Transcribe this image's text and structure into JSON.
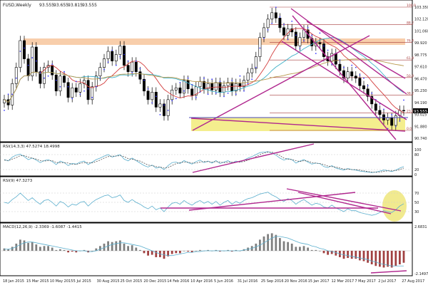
{
  "colors": {
    "up": "#ffffff",
    "down": "#000000",
    "candle_border": "#000000",
    "ma_fast": "#d23c3c",
    "ma_mid": "#3fb0c8",
    "ma_slow": "#b89a4e",
    "parabolic": "#3a3aff",
    "trendline": "#b0278e",
    "highlight_top": "#f7c9a2",
    "highlight_bottom": "#f4ee8e",
    "osc_main": "#5aaecd",
    "osc_signal": "#555555",
    "macd_up": "#7f7f7f",
    "macd_down": "#a04040",
    "fib": "#a63b3b",
    "ellipse": "#ece36a"
  },
  "chart_data": [
    {
      "type": "candlestick",
      "title": "FUSD,Weekly",
      "ohlc": [
        "93.555",
        "93.655",
        "93.815",
        "93.555"
      ],
      "series": [
        {
          "name": "Close",
          "values": [
            94.6,
            94.1,
            96.1,
            97.6,
            100.1,
            98.4,
            96.8,
            99.5,
            97.2,
            96.1,
            97.6,
            97.8,
            96.9,
            95.4,
            96.8,
            96.2,
            94.8,
            95.7,
            95.3,
            96.1,
            96.4,
            94.6,
            95.8,
            96.8,
            97.6,
            98.4,
            99.1,
            98.2,
            98.8,
            99.6,
            97.8,
            97.2,
            98.1,
            97.2,
            96.5,
            95.4,
            94.6,
            95.3,
            93.9,
            94.2,
            93.1,
            94.6,
            95.5,
            95.7,
            95.2,
            96.4,
            95.6,
            95.0,
            95.8,
            96.3,
            95.6,
            96.1,
            95.5,
            96.2,
            95.3,
            95.9,
            96.2,
            95.4,
            96.1,
            95.8,
            96.4,
            97.1,
            97.5,
            98.6,
            100.4,
            101.3,
            102.1,
            102.7,
            102.2,
            101.3,
            100.6,
            101.2,
            100.9,
            99.6,
            100.4,
            101.1,
            100.3,
            99.6,
            99.9,
            99.8,
            98.6,
            98.2,
            98.9,
            97.9,
            97.3,
            96.6,
            97.2,
            96.8,
            96.6,
            95.9,
            95.6,
            94.9,
            94.2,
            93.6,
            93.2,
            92.7,
            92.9,
            92.2,
            93.1,
            93.6,
            93.555
          ]
        },
        {
          "name": "Parabolic SAR"
        },
        {
          "name": "Moving averages"
        }
      ],
      "y_ticks": [
        "103.350",
        "102.120",
        "101.060",
        "99.920",
        "98.775",
        "97.610",
        "96.470",
        "95.230",
        "94.190",
        "93.025",
        "91.880",
        "90.740"
      ],
      "fib_labels": [
        "100.0",
        "88.2",
        "76.4",
        "61.8",
        "50.0",
        "38.2",
        "23.6",
        "0.0"
      ],
      "last_price": "93.555",
      "x_labels": [
        "18 Jan 2015",
        "15 Mar 2015",
        "10 May 2015",
        "5 Jul 2015",
        "30 Aug 2015",
        "25 Oct 2015",
        "20 Dec 2015",
        "14 Feb 2016",
        "10 Apr 2016",
        "5 Jun 2016",
        "31 Jul 2016",
        "25 Sep 2016",
        "20 Nov 2016",
        "15 Jan 2017",
        "12 Mar 2017",
        "7 May 2017",
        "2 Jul 2017",
        "27 Aug 2017"
      ],
      "ylim": [
        90.74,
        103.35
      ]
    },
    {
      "type": "line",
      "title": "RSI(14,3,3) 47.5274 18.4998",
      "ticks": [
        "100",
        "80",
        "20",
        "0"
      ],
      "series": [
        {
          "values": [
            60,
            55,
            70,
            78,
            82,
            72,
            60,
            66,
            58,
            48,
            56,
            60,
            52,
            40,
            54,
            48,
            36,
            45,
            42,
            50,
            54,
            40,
            50,
            60,
            66,
            74,
            80,
            70,
            75,
            80,
            62,
            55,
            66,
            56,
            46,
            36,
            30,
            38,
            26,
            30,
            20,
            36,
            48,
            50,
            44,
            56,
            48,
            42,
            52,
            58,
            48,
            54,
            46,
            56,
            44,
            50,
            56,
            46,
            54,
            50,
            58,
            66,
            72,
            80,
            88,
            90,
            92,
            86,
            78,
            66,
            58,
            64,
            60,
            46,
            54,
            60,
            50,
            42,
            46,
            44,
            32,
            28,
            36,
            26,
            22,
            18,
            24,
            20,
            18,
            14,
            12,
            10,
            8,
            10,
            14,
            18,
            16,
            12,
            18,
            26,
            32
          ]
        },
        {
          "values": [
            58,
            56,
            62,
            68,
            76,
            76,
            70,
            66,
            62,
            56,
            54,
            56,
            56,
            48,
            48,
            48,
            46,
            42,
            41,
            45,
            48,
            48,
            47,
            52,
            58,
            66,
            72,
            74,
            74,
            76,
            72,
            64,
            62,
            58,
            54,
            46,
            38,
            36,
            32,
            30,
            26,
            28,
            36,
            44,
            48,
            50,
            50,
            46,
            46,
            50,
            52,
            52,
            50,
            52,
            50,
            48,
            50,
            50,
            50,
            50,
            52,
            58,
            64,
            72,
            80,
            86,
            90,
            90,
            84,
            76,
            66,
            62,
            60,
            56,
            52,
            56,
            54,
            48,
            46,
            44,
            40,
            34,
            32,
            30,
            26,
            22,
            22,
            20,
            20,
            18,
            15,
            12,
            10,
            9,
            10,
            13,
            15,
            15,
            16,
            20,
            26
          ]
        }
      ]
    },
    {
      "type": "line",
      "title": "RSI(9) 47.3273",
      "ticks": [
        "70",
        "50",
        "30"
      ],
      "series": [
        {
          "values": [
            50,
            48,
            56,
            62,
            70,
            62,
            54,
            60,
            52,
            46,
            54,
            56,
            50,
            42,
            52,
            48,
            40,
            46,
            44,
            50,
            52,
            42,
            50,
            56,
            60,
            64,
            66,
            60,
            62,
            66,
            54,
            50,
            56,
            50,
            46,
            40,
            36,
            42,
            34,
            38,
            30,
            40,
            48,
            50,
            46,
            54,
            48,
            44,
            50,
            54,
            48,
            52,
            46,
            52,
            44,
            50,
            54,
            46,
            52,
            48,
            54,
            58,
            60,
            64,
            68,
            70,
            72,
            66,
            62,
            56,
            52,
            58,
            54,
            46,
            52,
            56,
            50,
            44,
            48,
            46,
            40,
            38,
            44,
            38,
            34,
            30,
            36,
            32,
            32,
            28,
            26,
            24,
            22,
            24,
            28,
            32,
            30,
            28,
            34,
            42,
            47
          ]
        }
      ]
    },
    {
      "type": "bar",
      "title": "MACD(12,26,9) -2.3369 -1.6087 -1.4415",
      "ticks": [
        "2.6831",
        "-2.1497"
      ],
      "series": [
        {
          "name": "histogram",
          "values": [
            0.3,
            0.2,
            0.5,
            0.9,
            1.4,
            1.3,
            1.0,
            1.1,
            0.8,
            0.5,
            0.6,
            0.6,
            0.4,
            0.1,
            0.2,
            0.1,
            -0.2,
            -0.1,
            -0.2,
            0.0,
            0.1,
            -0.2,
            0.0,
            0.3,
            0.6,
            0.9,
            1.2,
            1.1,
            1.2,
            1.3,
            0.9,
            0.6,
            0.7,
            0.4,
            0.1,
            -0.3,
            -0.6,
            -0.5,
            -0.8,
            -0.8,
            -1.0,
            -0.7,
            -0.4,
            -0.3,
            -0.3,
            0.0,
            -0.1,
            -0.2,
            0.0,
            0.1,
            0.0,
            0.1,
            0.0,
            0.1,
            -0.1,
            0.0,
            0.1,
            -0.1,
            0.1,
            0.0,
            0.2,
            0.4,
            0.6,
            0.9,
            1.4,
            1.8,
            2.1,
            2.2,
            2.0,
            1.6,
            1.2,
            1.1,
            0.9,
            0.5,
            0.5,
            0.6,
            0.4,
            0.1,
            0.1,
            0.0,
            -0.3,
            -0.5,
            -0.4,
            -0.6,
            -0.8,
            -1.0,
            -0.9,
            -1.0,
            -1.0,
            -1.2,
            -1.3,
            -1.5,
            -1.7,
            -1.9,
            -2.0,
            -2.1,
            -2.0,
            -2.1,
            -1.9,
            -1.7,
            -1.5
          ]
        },
        {
          "name": "signal",
          "values": [
            0.2,
            0.2,
            0.3,
            0.5,
            0.8,
            1.0,
            1.1,
            1.1,
            1.0,
            0.9,
            0.8,
            0.7,
            0.6,
            0.5,
            0.4,
            0.3,
            0.2,
            0.1,
            0.0,
            0.0,
            0.0,
            -0.1,
            -0.1,
            0.0,
            0.2,
            0.4,
            0.6,
            0.8,
            0.9,
            1.0,
            1.0,
            0.9,
            0.8,
            0.7,
            0.6,
            0.4,
            0.2,
            0.0,
            -0.2,
            -0.4,
            -0.5,
            -0.6,
            -0.6,
            -0.5,
            -0.4,
            -0.3,
            -0.2,
            -0.2,
            -0.1,
            -0.1,
            0.0,
            0.0,
            0.0,
            0.0,
            0.0,
            0.0,
            0.0,
            0.0,
            0.0,
            0.0,
            0.1,
            0.2,
            0.3,
            0.5,
            0.7,
            1.0,
            1.3,
            1.6,
            1.8,
            1.8,
            1.7,
            1.6,
            1.4,
            1.2,
            1.0,
            0.9,
            0.8,
            0.6,
            0.5,
            0.3,
            0.2,
            0.0,
            -0.1,
            -0.2,
            -0.4,
            -0.5,
            -0.6,
            -0.7,
            -0.8,
            -0.9,
            -1.0,
            -1.1,
            -1.3,
            -1.4,
            -1.6,
            -1.7,
            -1.8,
            -1.9,
            -1.9,
            -1.9,
            -1.9
          ]
        }
      ]
    }
  ]
}
